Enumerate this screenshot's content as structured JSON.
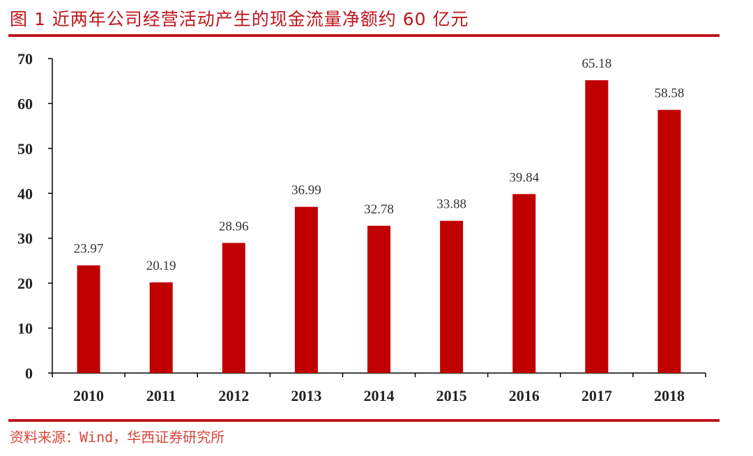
{
  "header": {
    "title": "图 1 近两年公司经营活动产生的现金流量净额约 60 亿元"
  },
  "footer": {
    "source": "资料来源：Wind，华西证券研究所"
  },
  "colors": {
    "accent": "#c0141c",
    "bar": "#c00000"
  },
  "chart_data": {
    "type": "bar",
    "categories": [
      "2010",
      "2011",
      "2012",
      "2013",
      "2014",
      "2015",
      "2016",
      "2017",
      "2018"
    ],
    "values": [
      23.97,
      20.19,
      28.96,
      36.99,
      32.78,
      33.88,
      39.84,
      65.18,
      58.58
    ],
    "data_labels": [
      "23.97",
      "20.19",
      "28.96",
      "36.99",
      "32.78",
      "33.88",
      "39.84",
      "65.18",
      "58.58"
    ],
    "yticks": [
      "0",
      "10",
      "20",
      "30",
      "40",
      "50",
      "60",
      "70"
    ],
    "ylim": [
      0,
      70
    ],
    "grid": false,
    "legend": "none"
  }
}
